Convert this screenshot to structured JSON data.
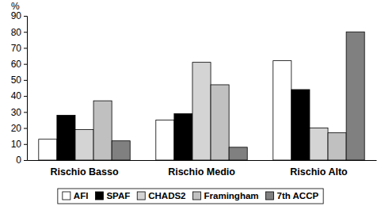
{
  "chart_data": {
    "type": "bar",
    "y_label": "%",
    "categories": [
      "Rischio Basso",
      "Rischio Medio",
      "Rischio Alto"
    ],
    "series": [
      {
        "name": "AFI",
        "color": "#ffffff",
        "values": [
          13,
          25,
          62
        ]
      },
      {
        "name": "SPAF",
        "color": "#000000",
        "values": [
          28,
          29,
          44
        ]
      },
      {
        "name": "CHADS2",
        "color": "#d4d4d4",
        "values": [
          19,
          61,
          20
        ]
      },
      {
        "name": "Framingham",
        "color": "#c0c0c0",
        "values": [
          37,
          47,
          17
        ]
      },
      {
        "name": "7th ACCP",
        "color": "#808080",
        "values": [
          12,
          8,
          80
        ]
      }
    ],
    "ylim": [
      0,
      90
    ],
    "yticks": [
      0,
      10,
      20,
      30,
      40,
      50,
      60,
      70,
      80,
      90
    ],
    "grid": false,
    "legend": "bottom"
  }
}
